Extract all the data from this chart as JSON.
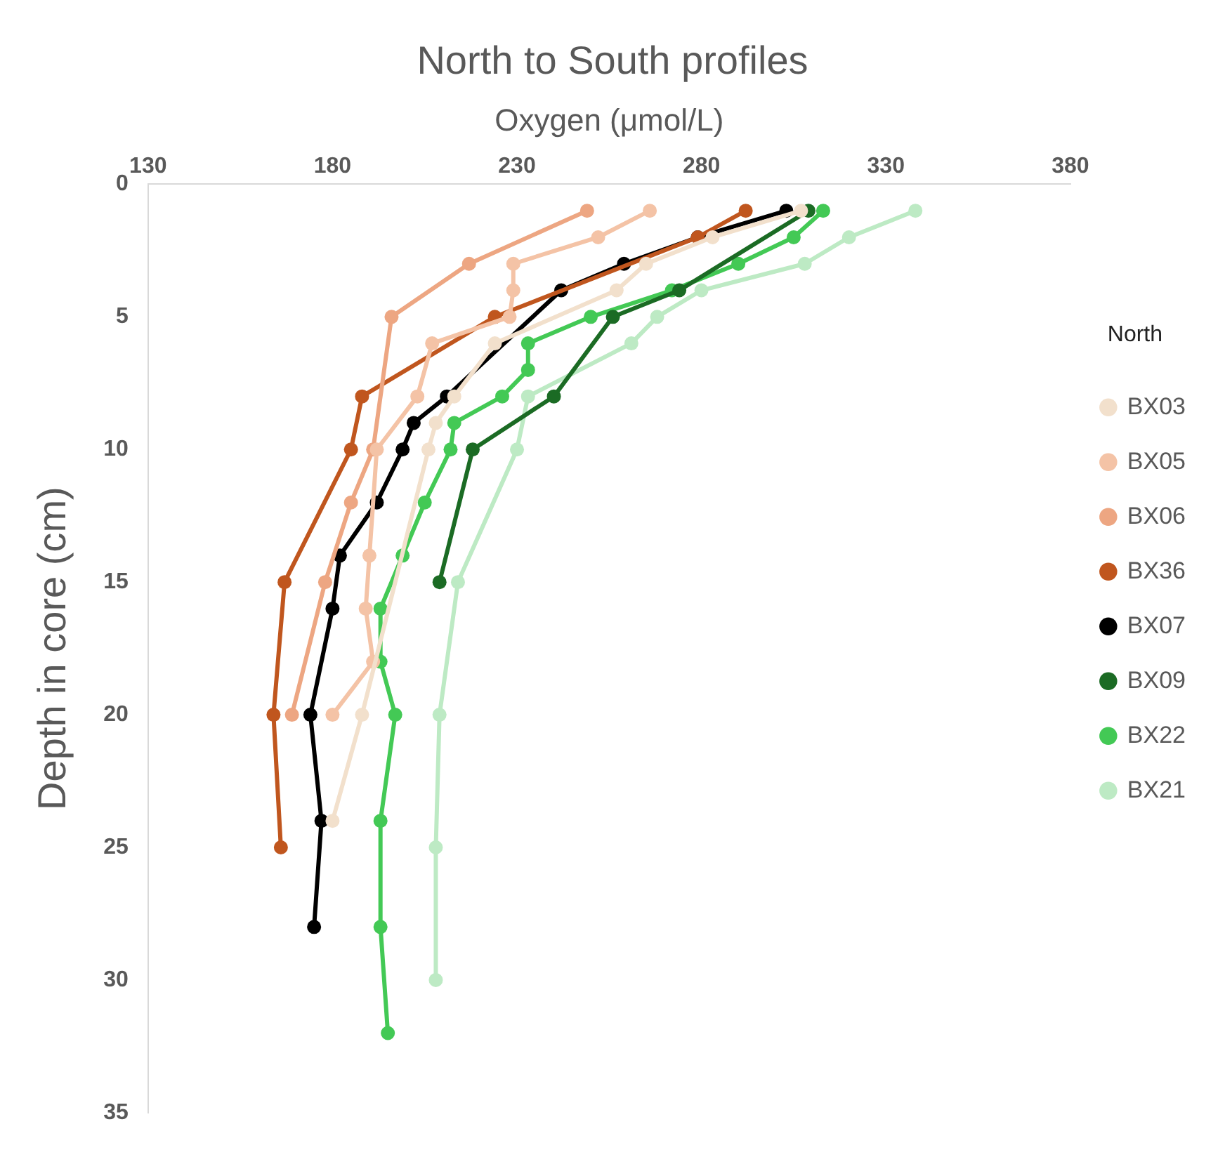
{
  "chart_data": {
    "type": "line",
    "title": "North to South profiles",
    "xlabel": "Oxygen (μmol/L)",
    "ylabel": "Depth in core (cm)",
    "legend_title": "North",
    "legend": "right",
    "marker": "circle",
    "grid": false,
    "xlim": [
      130,
      380
    ],
    "xticks": [
      130,
      180,
      230,
      280,
      330,
      380
    ],
    "ylim": [
      35,
      0
    ],
    "yticks": [
      0,
      5,
      10,
      15,
      20,
      25,
      30,
      35
    ],
    "series": [
      {
        "name": "BX03",
        "color": "#f2e0cc",
        "x": [
          307,
          283,
          265,
          257,
          224,
          213,
          208,
          206,
          188,
          180
        ],
        "values": [
          1,
          2,
          3,
          4,
          6,
          8,
          9,
          10,
          20,
          24
        ]
      },
      {
        "name": "BX05",
        "color": "#f4c3a6",
        "x": [
          266,
          252,
          229,
          229,
          228,
          207,
          203,
          192,
          190,
          189,
          191,
          180
        ],
        "values": [
          1,
          2,
          3,
          4,
          5,
          6,
          8,
          10,
          14,
          16,
          18,
          20
        ]
      },
      {
        "name": "BX06",
        "color": "#eda682",
        "x": [
          249,
          217,
          196,
          191,
          185,
          178,
          169
        ],
        "values": [
          1,
          3,
          5,
          10,
          12,
          15,
          20
        ]
      },
      {
        "name": "BX36",
        "color": "#c0561e",
        "x": [
          292,
          279,
          224,
          188,
          185,
          167,
          164,
          166
        ],
        "values": [
          1,
          2,
          5,
          8,
          10,
          15,
          20,
          25
        ]
      },
      {
        "name": "BX07",
        "color": "#000000",
        "x": [
          303,
          279,
          259,
          242,
          211,
          202,
          199,
          192,
          182,
          180,
          174,
          177,
          175
        ],
        "values": [
          1,
          2,
          3,
          4,
          8,
          9,
          10,
          12,
          14,
          16,
          20,
          24,
          28
        ]
      },
      {
        "name": "BX09",
        "color": "#1b6b24",
        "x": [
          309,
          274,
          256,
          240,
          218,
          209
        ],
        "values": [
          1,
          4,
          5,
          8,
          10,
          15
        ]
      },
      {
        "name": "BX22",
        "color": "#43c955",
        "x": [
          313,
          305,
          290,
          272,
          250,
          233,
          233,
          226,
          213,
          212,
          205,
          199,
          193,
          193,
          197,
          193,
          193,
          195
        ],
        "values": [
          1,
          2,
          3,
          4,
          5,
          6,
          7,
          8,
          9,
          10,
          12,
          14,
          16,
          18,
          20,
          24,
          28,
          32
        ]
      },
      {
        "name": "BX21",
        "color": "#bdeac4",
        "x": [
          338,
          320,
          308,
          280,
          268,
          261,
          233,
          230,
          214,
          209,
          208,
          208
        ],
        "values": [
          1,
          2,
          3,
          4,
          5,
          6,
          8,
          10,
          15,
          20,
          25,
          30
        ]
      }
    ]
  }
}
